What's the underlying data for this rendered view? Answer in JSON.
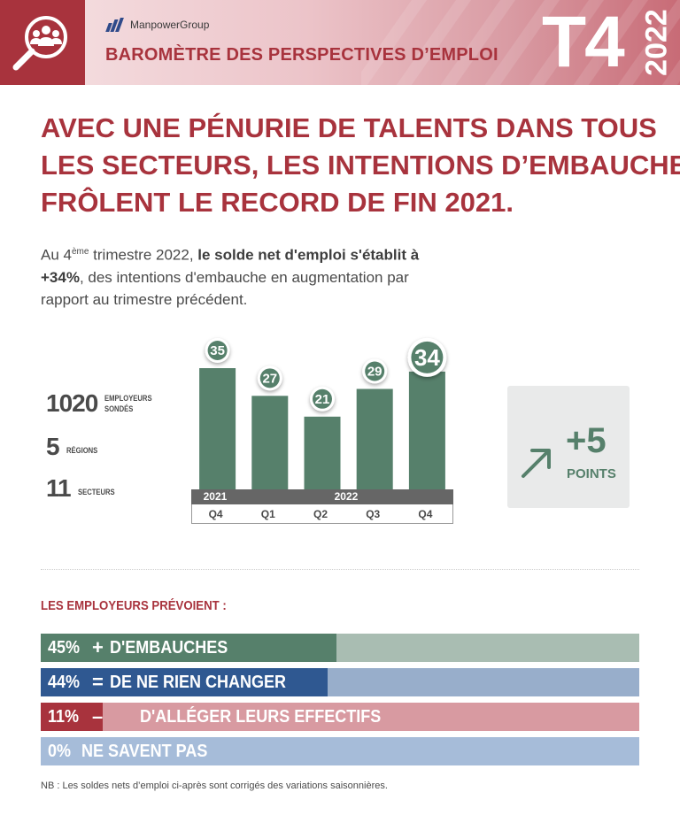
{
  "header": {
    "brand": "ManpowerGroup",
    "title": "BAROMÈTRE DES PERSPECTIVES D’EMPLOI",
    "quarter": "T4",
    "year": "2022"
  },
  "headline": {
    "line1": "AVEC UNE PÉNURIE DE TALENTS DANS TOUS",
    "line2": "LES SECTEURS, LES INTENTIONS D’EMBAUCHE",
    "line3": "FRÔLENT LE RECORD DE FIN 2021."
  },
  "intro": {
    "p1": "Au 4",
    "sup": "ème",
    "p2": " trimestre 2022, ",
    "bold": "le solde net d'emploi s'établit à +34%",
    "p3": ", des intentions d'embauche en augmentation par rapport au trimestre précédent."
  },
  "stats": [
    {
      "num": "1020",
      "label_l1": "EMPLOYEURS",
      "label_l2": "SONDÉS"
    },
    {
      "num": "5",
      "label_l1": "RÉGIONS",
      "label_l2": ""
    },
    {
      "num": "11",
      "label_l1": "SECTEURS",
      "label_l2": ""
    }
  ],
  "chart_data": {
    "type": "bar",
    "categories": [
      "Q4",
      "Q1",
      "Q2",
      "Q3",
      "Q4"
    ],
    "values": [
      35,
      27,
      21,
      29,
      34
    ],
    "year_groups": [
      {
        "label": "2021",
        "categories": [
          "Q4"
        ]
      },
      {
        "label": "2022",
        "categories": [
          "Q1",
          "Q2",
          "Q3",
          "Q4"
        ]
      }
    ],
    "title": "",
    "xlabel": "",
    "ylabel": "",
    "ylim": [
      0,
      40
    ],
    "highlight_index": 4,
    "bar_color": "#56806b",
    "grid": false
  },
  "delta": {
    "value": "+5",
    "unit": "POINTS"
  },
  "breakdown": {
    "title": "LES EMPLOYEURS PRÉVOIENT :",
    "items": [
      {
        "pct": "45%",
        "symbol": "+",
        "text": "D'EMBAUCHES",
        "value": 45,
        "fill": "#56806b",
        "bg": "#a9bdb2"
      },
      {
        "pct": "44%",
        "symbol": "=",
        "text": "DE NE RIEN CHANGER",
        "value": 44,
        "fill": "#2f5891",
        "bg": "#98aecb"
      },
      {
        "pct": "11%",
        "symbol": "–",
        "text": "D'ALLÉGER LEURS EFFECTIFS",
        "value": 11,
        "fill": "#a8333d",
        "bg": "#d89aa1"
      },
      {
        "pct": "0%",
        "symbol": "",
        "text": "NE SAVENT PAS",
        "value": 0,
        "fill": "#8aa7cc",
        "bg": "#a6bcd9"
      }
    ]
  },
  "note": "NB : Les soldes nets d’emploi ci-après sont corrigés des variations saisonnières.",
  "colors": {
    "brand_red": "#a8333d",
    "green": "#56806b",
    "blue": "#2f5891"
  },
  "icons": {
    "header": "people-magnifier-icon",
    "delta": "arrow-up-right-icon"
  }
}
